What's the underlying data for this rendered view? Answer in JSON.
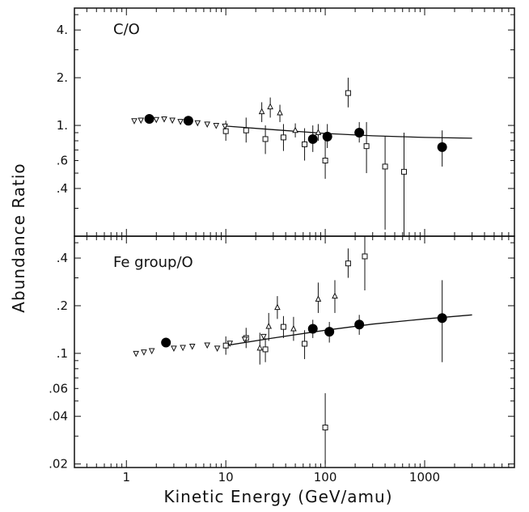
{
  "chart_data": {
    "type": "scatter",
    "xlabel": "Kinetic Energy (GeV/amu)",
    "ylabel": "Abundance Ratio",
    "x_scale": "log",
    "y_scale": "log",
    "xlim": [
      0.3,
      8000
    ],
    "x_ticks": [
      1,
      10,
      100,
      1000
    ],
    "x_tick_labels": [
      "1",
      "10",
      "100",
      "1000"
    ],
    "legend": "none",
    "panels": [
      {
        "label": "C/O",
        "ylim": [
          0.2,
          5.5
        ],
        "y_ticks": [
          0.4,
          0.6,
          1,
          2,
          4
        ],
        "y_tick_labels": [
          ".4",
          ".6",
          "1.",
          "2.",
          "4."
        ],
        "series": [
          {
            "marker": "filled-circle",
            "points": [
              {
                "x": 1.7,
                "y": 1.1
              },
              {
                "x": 4.2,
                "y": 1.07
              },
              {
                "x": 75,
                "y": 0.82,
                "ylo": 0.68,
                "yhi": 1.0
              },
              {
                "x": 105,
                "y": 0.85,
                "ylo": 0.72,
                "yhi": 1.02
              },
              {
                "x": 220,
                "y": 0.9,
                "ylo": 0.78,
                "yhi": 1.05
              },
              {
                "x": 1500,
                "y": 0.73,
                "ylo": 0.55,
                "yhi": 0.93
              }
            ]
          },
          {
            "marker": "open-square",
            "points": [
              {
                "x": 10,
                "y": 0.92,
                "ylo": 0.8,
                "yhi": 1.07
              },
              {
                "x": 16,
                "y": 0.93,
                "ylo": 0.78,
                "yhi": 1.12
              },
              {
                "x": 25,
                "y": 0.82,
                "ylo": 0.66,
                "yhi": 1.0
              },
              {
                "x": 38,
                "y": 0.84,
                "ylo": 0.69,
                "yhi": 1.02
              },
              {
                "x": 62,
                "y": 0.76,
                "ylo": 0.6,
                "yhi": 0.96
              },
              {
                "x": 100,
                "y": 0.6,
                "ylo": 0.46,
                "yhi": 0.8
              },
              {
                "x": 170,
                "y": 1.6,
                "ylo": 1.3,
                "yhi": 2.0
              },
              {
                "x": 260,
                "y": 0.74,
                "ylo": 0.5,
                "yhi": 1.05
              },
              {
                "x": 400,
                "y": 0.55,
                "ylo": 0.22,
                "yhi": 0.85
              },
              {
                "x": 620,
                "y": 0.51,
                "ylo": 0.2,
                "yhi": 0.9
              }
            ]
          },
          {
            "marker": "open-triangle-up",
            "points": [
              {
                "x": 23,
                "y": 1.22,
                "ylo": 1.05,
                "yhi": 1.4
              },
              {
                "x": 28,
                "y": 1.31,
                "ylo": 1.12,
                "yhi": 1.5
              },
              {
                "x": 35,
                "y": 1.2,
                "ylo": 1.05,
                "yhi": 1.35
              },
              {
                "x": 50,
                "y": 0.93,
                "ylo": 0.84,
                "yhi": 1.03
              },
              {
                "x": 85,
                "y": 0.9,
                "ylo": 0.8,
                "yhi": 1.02
              }
            ]
          },
          {
            "marker": "open-triangle-down",
            "points": [
              {
                "x": 1.2,
                "y": 1.07
              },
              {
                "x": 1.4,
                "y": 1.08
              },
              {
                "x": 2.0,
                "y": 1.09
              },
              {
                "x": 2.4,
                "y": 1.1
              },
              {
                "x": 2.9,
                "y": 1.08
              },
              {
                "x": 3.5,
                "y": 1.06
              },
              {
                "x": 5.2,
                "y": 1.04
              },
              {
                "x": 6.5,
                "y": 1.02
              },
              {
                "x": 8.0,
                "y": 1.0
              },
              {
                "x": 9.8,
                "y": 0.99
              }
            ]
          }
        ],
        "fit_line": {
          "x": [
            10,
            30,
            100,
            300,
            1000,
            3000
          ],
          "y": [
            0.99,
            0.94,
            0.89,
            0.86,
            0.84,
            0.83
          ]
        }
      },
      {
        "label": "Fe group/O",
        "ylim": [
          0.019,
          0.55
        ],
        "y_ticks": [
          0.02,
          0.04,
          0.06,
          0.1,
          0.2,
          0.4
        ],
        "y_tick_labels": [
          ".02",
          ".04",
          ".06",
          ".1",
          ".2",
          ".4"
        ],
        "series": [
          {
            "marker": "filled-circle",
            "points": [
              {
                "x": 2.5,
                "y": 0.117
              },
              {
                "x": 75,
                "y": 0.143,
                "ylo": 0.125,
                "yhi": 0.163
              },
              {
                "x": 110,
                "y": 0.137,
                "ylo": 0.117,
                "yhi": 0.158
              },
              {
                "x": 220,
                "y": 0.152,
                "ylo": 0.131,
                "yhi": 0.175
              },
              {
                "x": 1500,
                "y": 0.167,
                "ylo": 0.088,
                "yhi": 0.29
              }
            ]
          },
          {
            "marker": "open-square",
            "points": [
              {
                "x": 10,
                "y": 0.112,
                "ylo": 0.098,
                "yhi": 0.128
              },
              {
                "x": 16,
                "y": 0.125,
                "ylo": 0.108,
                "yhi": 0.145
              },
              {
                "x": 25,
                "y": 0.106,
                "ylo": 0.088,
                "yhi": 0.125
              },
              {
                "x": 38,
                "y": 0.147,
                "ylo": 0.125,
                "yhi": 0.172
              },
              {
                "x": 62,
                "y": 0.115,
                "ylo": 0.092,
                "yhi": 0.14
              },
              {
                "x": 100,
                "y": 0.034,
                "ylo": 0.02,
                "yhi": 0.056
              },
              {
                "x": 170,
                "y": 0.37,
                "ylo": 0.3,
                "yhi": 0.46
              },
              {
                "x": 250,
                "y": 0.41,
                "ylo": 0.25,
                "yhi": 0.55
              }
            ]
          },
          {
            "marker": "open-triangle-up",
            "points": [
              {
                "x": 22,
                "y": 0.108,
                "ylo": 0.085,
                "yhi": 0.135
              },
              {
                "x": 27,
                "y": 0.148,
                "ylo": 0.12,
                "yhi": 0.18
              },
              {
                "x": 33,
                "y": 0.195,
                "ylo": 0.165,
                "yhi": 0.23
              },
              {
                "x": 48,
                "y": 0.143,
                "ylo": 0.12,
                "yhi": 0.17
              },
              {
                "x": 85,
                "y": 0.22,
                "ylo": 0.18,
                "yhi": 0.28
              },
              {
                "x": 125,
                "y": 0.23,
                "ylo": 0.18,
                "yhi": 0.29
              }
            ]
          },
          {
            "marker": "open-triangle-down",
            "points": [
              {
                "x": 1.25,
                "y": 0.1
              },
              {
                "x": 1.5,
                "y": 0.102
              },
              {
                "x": 1.8,
                "y": 0.104
              },
              {
                "x": 3.0,
                "y": 0.108
              },
              {
                "x": 3.7,
                "y": 0.109
              },
              {
                "x": 4.6,
                "y": 0.111
              },
              {
                "x": 6.5,
                "y": 0.113
              },
              {
                "x": 8.2,
                "y": 0.108
              },
              {
                "x": 11,
                "y": 0.116
              },
              {
                "x": 15.5,
                "y": 0.123
              },
              {
                "x": 24,
                "y": 0.128
              }
            ]
          }
        ],
        "fit_line": {
          "x": [
            10,
            30,
            100,
            300,
            1000,
            3000
          ],
          "y": [
            0.112,
            0.125,
            0.14,
            0.153,
            0.165,
            0.175
          ]
        }
      }
    ]
  }
}
